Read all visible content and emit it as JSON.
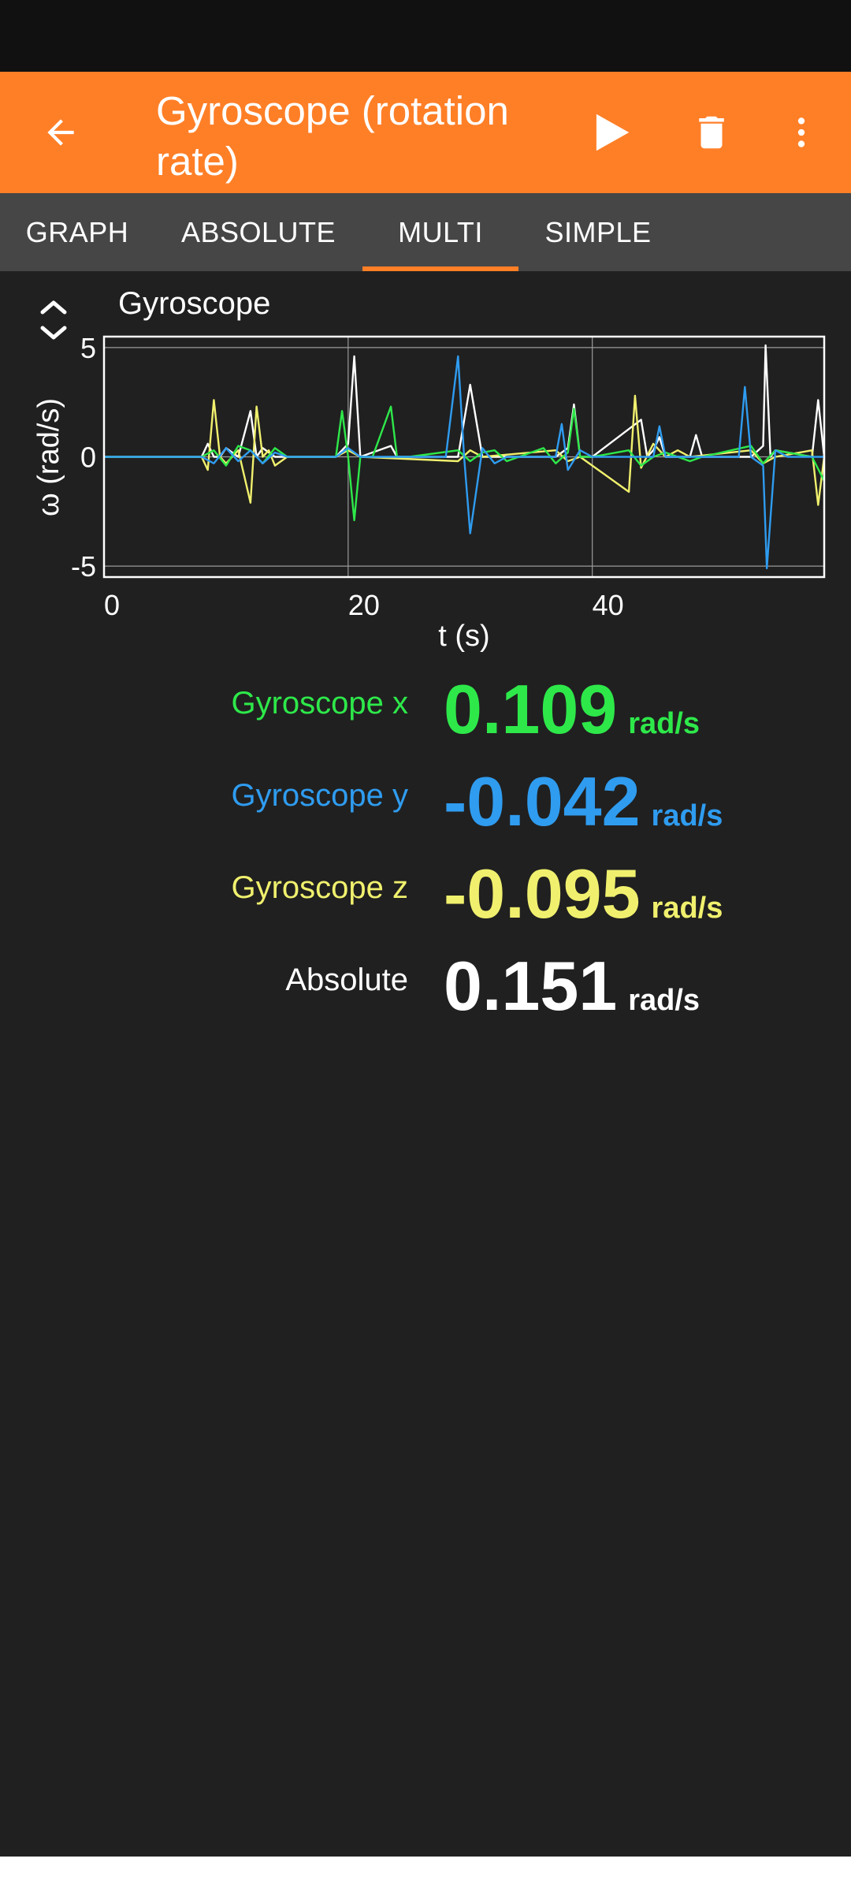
{
  "app_bar": {
    "title": "Gyroscope (rotation rate)",
    "icons": [
      "back-arrow-icon",
      "play-icon",
      "delete-icon",
      "more-vert-icon"
    ],
    "color": "#FF7F27"
  },
  "tabs": [
    {
      "label": "GRAPH"
    },
    {
      "label": "ABSOLUTE"
    },
    {
      "label": "MULTI",
      "selected": true
    },
    {
      "label": "SIMPLE"
    }
  ],
  "graph": {
    "title": "Gyroscope",
    "xlabel": "t (s)",
    "ylabel": "ω (rad/s)"
  },
  "chart_data": {
    "type": "line",
    "title": "Gyroscope",
    "xlabel": "t (s)",
    "ylabel": "ω (rad/s)",
    "xlim": [
      0,
      59
    ],
    "ylim": [
      -5.5,
      5.5
    ],
    "xticks": [
      0,
      20,
      40
    ],
    "yticks": [
      5,
      0,
      -5
    ],
    "grid": true,
    "series": [
      {
        "name": "Gyroscope x",
        "color": "#2EE84A",
        "x": [
          0,
          8,
          9,
          10,
          11,
          12,
          13,
          14,
          15,
          19,
          19.5,
          20,
          20.5,
          21,
          22,
          23.5,
          24,
          25,
          29,
          30,
          31,
          32,
          33,
          34,
          36,
          37,
          38,
          38.5,
          39,
          40,
          43,
          44,
          45,
          46,
          48,
          49,
          53,
          54,
          55,
          58,
          59
        ],
        "y": [
          0,
          0,
          0.3,
          -0.4,
          0.5,
          0.3,
          -0.3,
          0.4,
          0,
          0,
          2.1,
          0,
          -2.9,
          0,
          0,
          2.3,
          0,
          0,
          0.3,
          -0.2,
          0.2,
          0.3,
          -0.2,
          0,
          0.4,
          -0.3,
          0.2,
          2.2,
          0,
          0,
          0.3,
          -0.4,
          0,
          0.2,
          -0.2,
          0,
          0.5,
          -0.3,
          0.3,
          0,
          -1.1
        ]
      },
      {
        "name": "Gyroscope y",
        "color": "#2F9CF0",
        "x": [
          0,
          8,
          9,
          10,
          11,
          12,
          13,
          14,
          15,
          19,
          20,
          21,
          28,
          29,
          29.5,
          30,
          31,
          32,
          33,
          37,
          37.5,
          38,
          39,
          40,
          45,
          45.5,
          46,
          52,
          52.5,
          53,
          54,
          54.3,
          55,
          56,
          59
        ],
        "y": [
          0,
          0,
          -0.3,
          0.4,
          -0.2,
          0.3,
          -0.3,
          0.2,
          0,
          0,
          0.4,
          0,
          0,
          4.6,
          0,
          -3.5,
          0.4,
          -0.3,
          0,
          0,
          1.5,
          -0.6,
          0.3,
          0,
          0,
          1.4,
          0,
          0,
          3.2,
          0,
          -0.4,
          -5.1,
          0.3,
          0,
          0
        ]
      },
      {
        "name": "Gyroscope z",
        "color": "#F0F06E",
        "x": [
          0,
          8,
          8.5,
          9,
          9.5,
          10,
          11,
          12,
          12.5,
          13,
          13.5,
          14,
          15,
          19,
          20,
          21,
          29,
          30,
          31,
          37,
          38,
          39,
          43,
          43.5,
          44,
          45,
          46,
          47,
          48,
          53,
          54,
          55,
          58,
          58.5,
          59
        ],
        "y": [
          0,
          0,
          -0.6,
          2.6,
          0,
          -0.3,
          0.3,
          -2.1,
          2.3,
          0,
          0.3,
          -0.4,
          0,
          0,
          0.3,
          0,
          -0.2,
          0.3,
          0,
          0.3,
          -0.2,
          0,
          -1.6,
          2.8,
          -0.5,
          0.6,
          0,
          0.3,
          0,
          0.3,
          -0.3,
          0,
          0.3,
          -2.2,
          0
        ]
      },
      {
        "name": "Absolute",
        "color": "#FFFFFF",
        "x": [
          0,
          8,
          8.5,
          9,
          9.5,
          10,
          11,
          12,
          12.5,
          13,
          14,
          15,
          19,
          20,
          20.5,
          21,
          23.5,
          24,
          29,
          30,
          31,
          37,
          38,
          38.5,
          39,
          40,
          44,
          44.5,
          45,
          45.5,
          46,
          48,
          48.5,
          49,
          53,
          54,
          54.2,
          54.6,
          55,
          58,
          58.5,
          59
        ],
        "y": [
          0,
          0,
          0.6,
          0,
          0,
          0.4,
          0,
          2.1,
          0,
          0.4,
          0,
          0,
          0,
          0.6,
          4.6,
          0,
          0.5,
          0,
          0,
          3.3,
          0,
          0,
          0.4,
          2.4,
          0,
          0,
          1.7,
          0,
          0.3,
          0.9,
          0,
          0,
          1.0,
          0,
          0,
          0.5,
          5.1,
          0,
          0.3,
          0,
          2.6,
          0
        ]
      }
    ]
  },
  "values": [
    {
      "label": "Gyroscope x",
      "value": "0.109",
      "unit": "rad/s",
      "color": "#2EE84A"
    },
    {
      "label": "Gyroscope y",
      "value": "-0.042",
      "unit": "rad/s",
      "color": "#2F9CF0"
    },
    {
      "label": "Gyroscope z",
      "value": "-0.095",
      "unit": "rad/s",
      "color": "#F0F06E"
    },
    {
      "label": "Absolute",
      "value": "0.151",
      "unit": "rad/s",
      "color": "#FFFFFF"
    }
  ]
}
